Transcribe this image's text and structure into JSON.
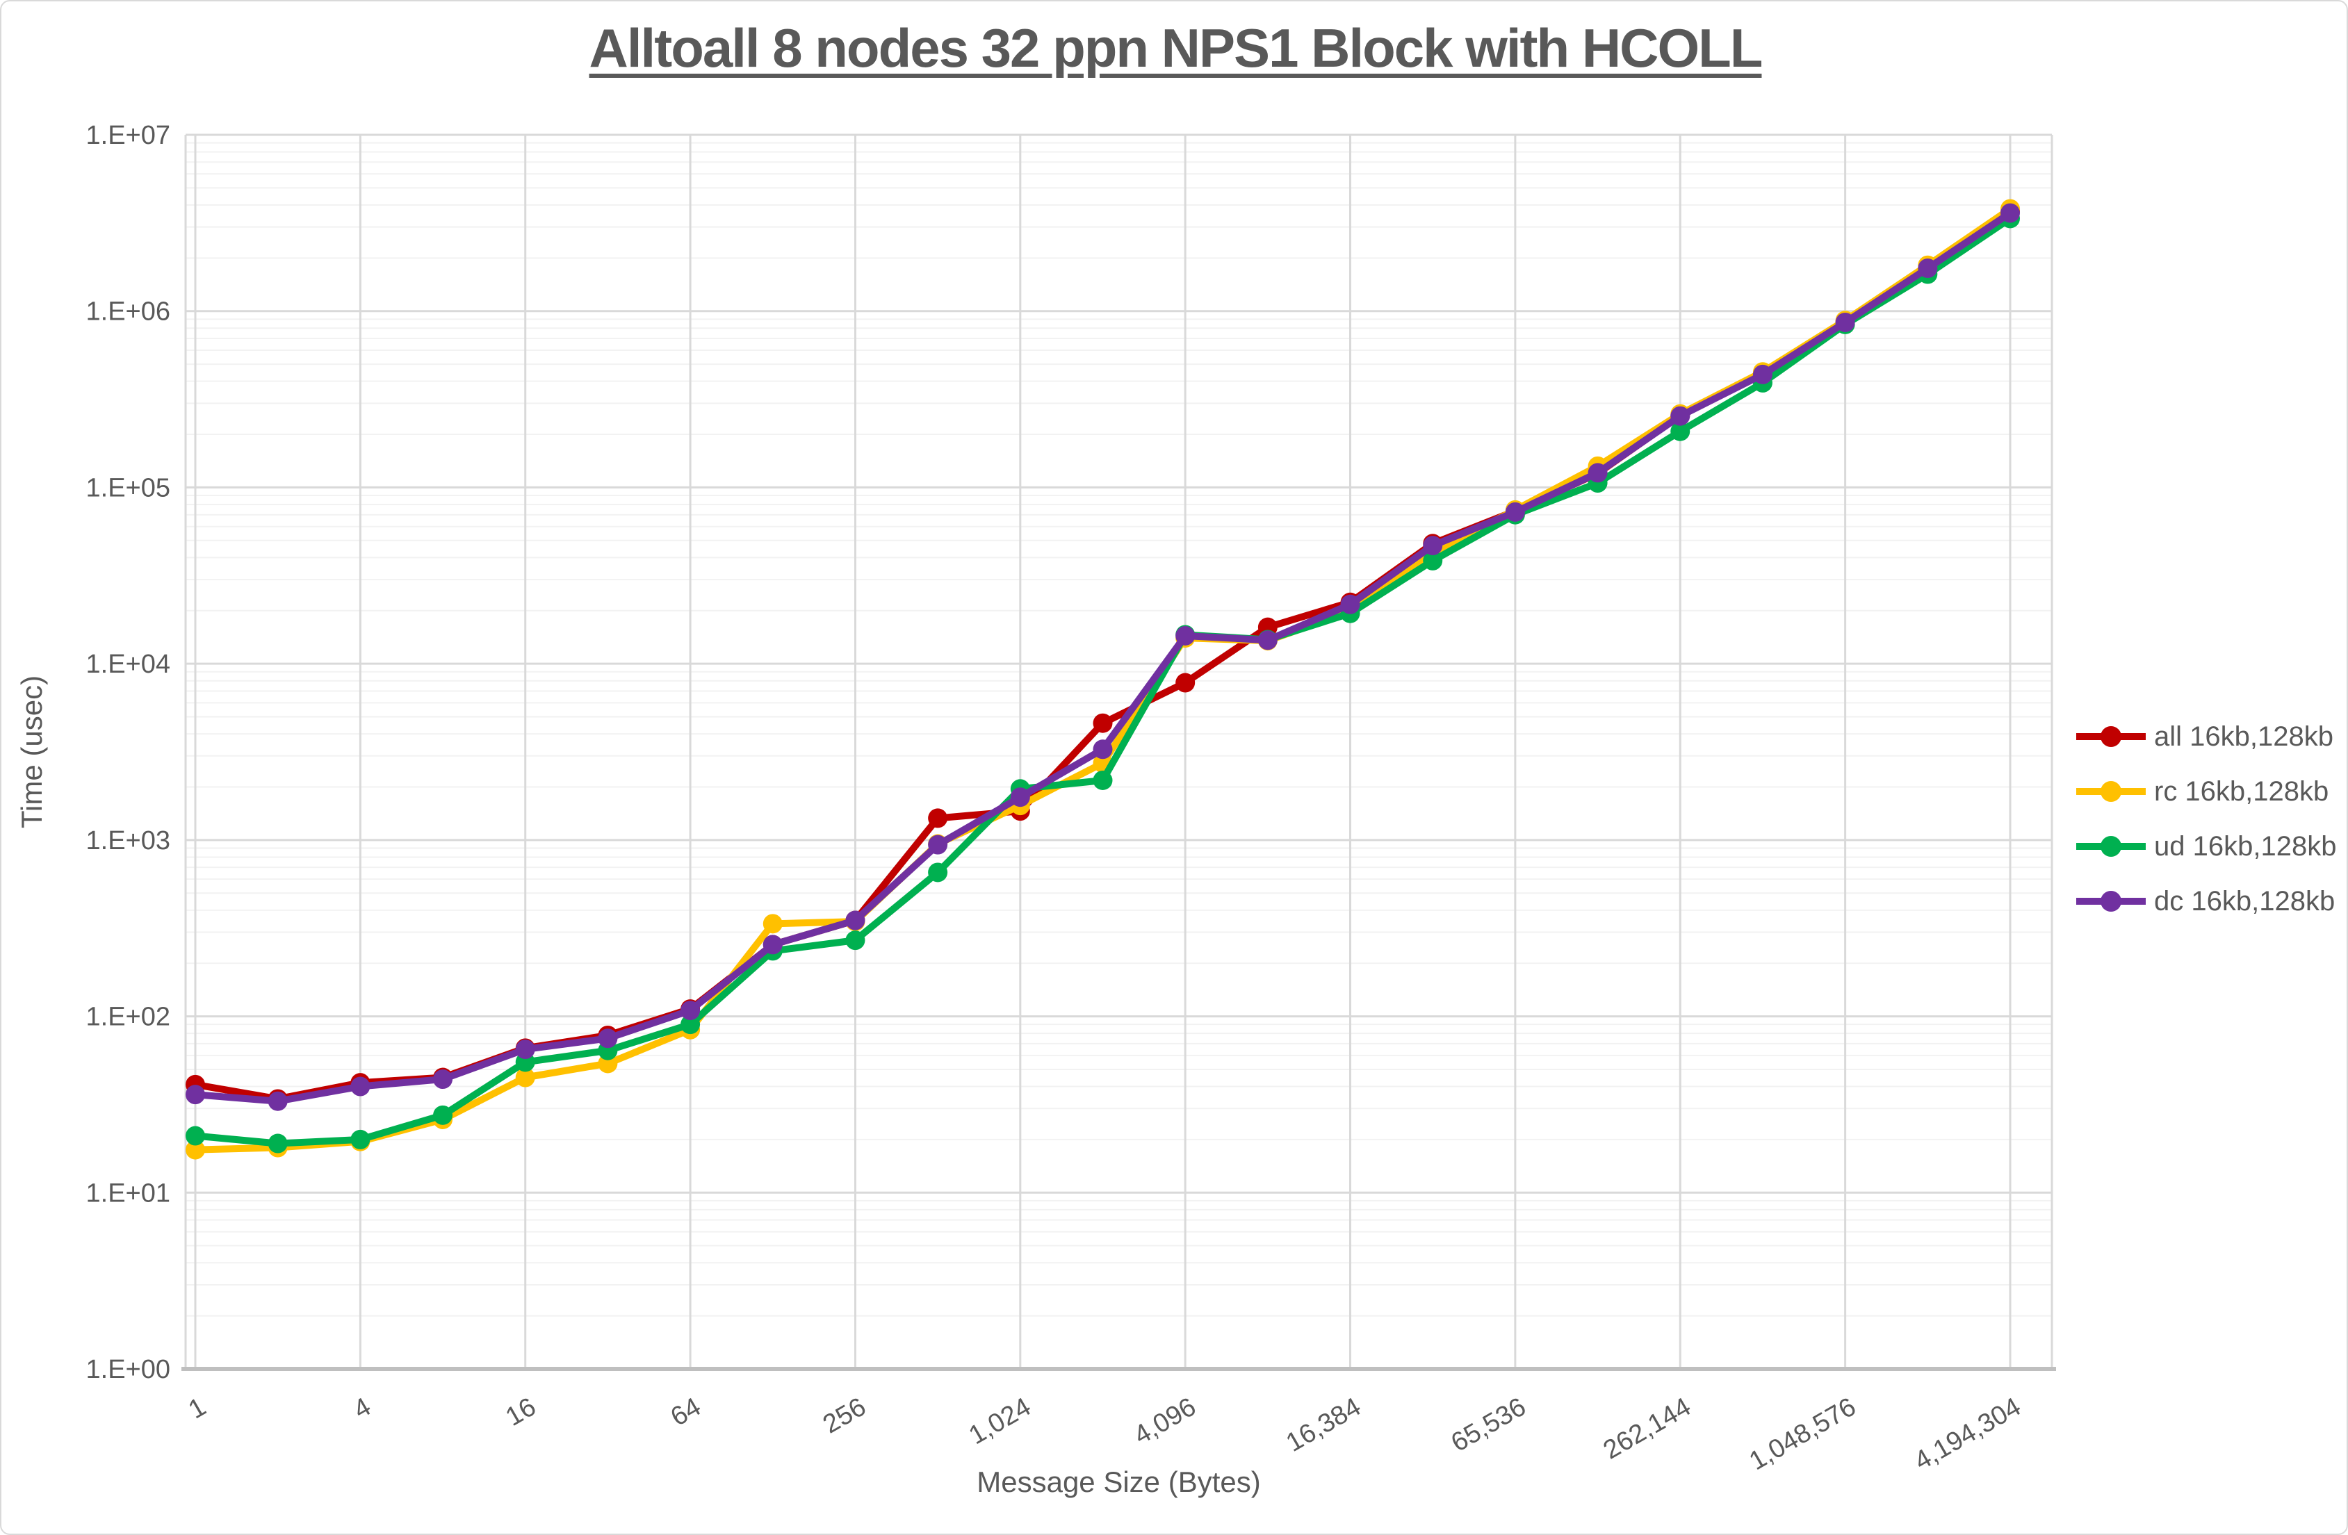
{
  "chart": {
    "title": "Alltoall 8 nodes 32 ppn NPS1 Block with HCOLL",
    "text_color": "#595959",
    "grid_major_color": "#d9d9d9",
    "grid_minor_color": "#f2f2f2",
    "axis_line_color": "#bfbfbf",
    "background_color": "#ffffff"
  },
  "chart_data": {
    "type": "line",
    "title": "Alltoall 8 nodes 32 ppn NPS1 Block with HCOLL",
    "xlabel": "Message Size (Bytes)",
    "ylabel": "Time (usec)",
    "x_scale": "log2_categories",
    "y_scale": "log10",
    "ylim": [
      1,
      10000000
    ],
    "y_tick_labels": [
      "1.E+00",
      "1.E+01",
      "1.E+02",
      "1.E+03",
      "1.E+04",
      "1.E+05",
      "1.E+06",
      "1.E+07"
    ],
    "x_tick_labels": [
      "1",
      "4",
      "16",
      "64",
      "256",
      "1,024",
      "4,096",
      "16,384",
      "65,536",
      "262,144",
      "1,048,576",
      "4,194,304"
    ],
    "grid": {
      "horizontal_major": true,
      "horizontal_minor": true,
      "vertical_major": true
    },
    "legend_position": "right",
    "categories": [
      1,
      2,
      4,
      8,
      16,
      32,
      64,
      128,
      256,
      512,
      1024,
      2048,
      4096,
      8192,
      16384,
      32768,
      65536,
      131072,
      262144,
      524288,
      1048576,
      2097152,
      4194304
    ],
    "series": [
      {
        "name": "all 16kb,128kb",
        "short": "all",
        "color": "#C00000",
        "values": [
          41,
          34,
          42,
          45,
          66,
          78,
          110,
          255,
          350,
          1330,
          1460,
          4600,
          7800,
          16100,
          22300,
          48000,
          73500,
          120000,
          256000,
          442000,
          870000,
          1750000,
          3700000
        ]
      },
      {
        "name": "rc 16kb,128kb",
        "short": "rc",
        "color": "#FFC000",
        "values": [
          17.5,
          18,
          19.5,
          26,
          45,
          54,
          84,
          335,
          345,
          950,
          1570,
          2730,
          14000,
          13500,
          19800,
          42700,
          74500,
          132000,
          261000,
          452000,
          885000,
          1820000,
          3800000
        ]
      },
      {
        "name": "ud 16kb,128kb",
        "short": "ud",
        "color": "#00B050",
        "values": [
          21,
          19,
          20,
          27.5,
          55,
          64,
          90,
          235,
          270,
          655,
          1950,
          2180,
          14600,
          13700,
          19300,
          38400,
          70000,
          106000,
          208000,
          392000,
          840000,
          1620000,
          3350000
        ]
      },
      {
        "name": "dc 16kb,128kb",
        "short": "dc",
        "color": "#7030A0",
        "values": [
          36,
          33,
          40,
          44,
          65,
          75,
          108,
          255,
          350,
          940,
          1750,
          3270,
          14400,
          13600,
          21700,
          46800,
          72500,
          121000,
          254000,
          437000,
          863000,
          1750000,
          3600000
        ]
      }
    ]
  }
}
